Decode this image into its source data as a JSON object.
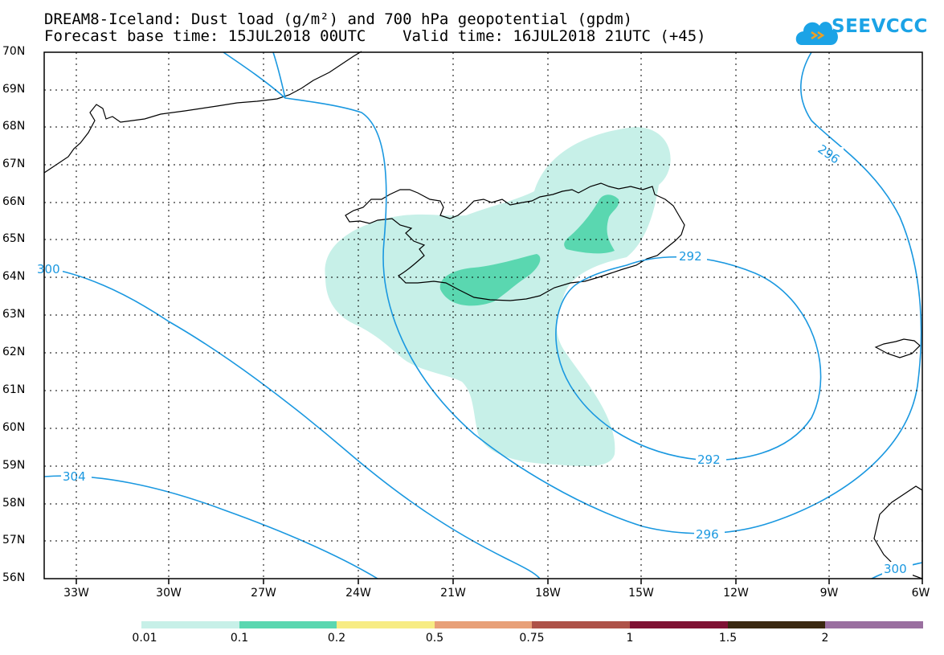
{
  "title_line1": "DREAM8-Iceland: Dust load (g/m²) and 700 hPa geopotential (gpdm)",
  "title_line2": "Forecast base time: 15JUL2018 00UTC    Valid time: 16JUL2018 21UTC (+45)",
  "logo_text": "SEEVCCC",
  "latitudes": [
    "70N",
    "69N",
    "68N",
    "67N",
    "66N",
    "65N",
    "64N",
    "63N",
    "62N",
    "61N",
    "60N",
    "59N",
    "58N",
    "57N",
    "56N"
  ],
  "longitudes": [
    "33W",
    "30W",
    "27W",
    "24W",
    "21W",
    "18W",
    "15W",
    "12W",
    "9W",
    "6W"
  ],
  "contours": [
    "292",
    "292",
    "296",
    "296",
    "300",
    "300",
    "304"
  ],
  "colorbar": {
    "labels": [
      "0.01",
      "0.1",
      "0.2",
      "0.5",
      "0.75",
      "1",
      "1.5",
      "2"
    ],
    "colors": [
      "#c7f0e8",
      "#5ad7b0",
      "#f7ec84",
      "#e8a078",
      "#ae5248",
      "#7f1133",
      "#3a2810",
      "#9a6fa0"
    ]
  },
  "colors": {
    "contour": "#1a98e0",
    "dust_low": "#c7f0e8",
    "dust_mid": "#5ad7b0",
    "coast": "#000000"
  }
}
